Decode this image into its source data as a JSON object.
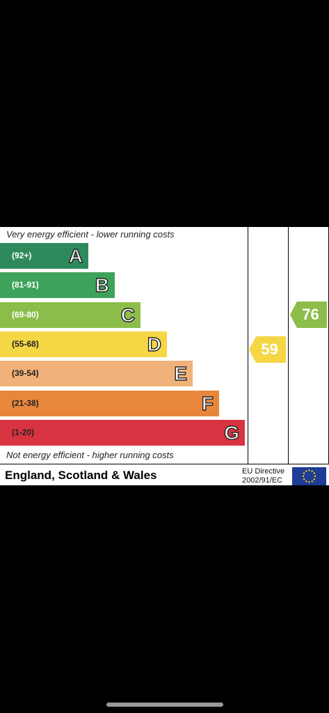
{
  "chart_data": {
    "type": "bar",
    "title": "",
    "top_caption": "Very energy efficient - lower running costs",
    "bottom_caption": "Not energy efficient - higher running costs",
    "bands": [
      {
        "letter": "A",
        "range": "(92+)",
        "color": "#2e8a5c",
        "light": false
      },
      {
        "letter": "B",
        "range": "(81-91)",
        "color": "#3ea35a",
        "light": false
      },
      {
        "letter": "C",
        "range": "(69-80)",
        "color": "#8cbd4a",
        "light": false
      },
      {
        "letter": "D",
        "range": "(55-68)",
        "color": "#f5d645",
        "light": true
      },
      {
        "letter": "E",
        "range": "(39-54)",
        "color": "#f0b27a",
        "light": true
      },
      {
        "letter": "F",
        "range": "(21-38)",
        "color": "#e8873c",
        "light": true
      },
      {
        "letter": "G",
        "range": "(1-20)",
        "color": "#d83341",
        "light": true
      }
    ],
    "current": {
      "value": 59,
      "band": "D",
      "color": "#f5d645"
    },
    "potential": {
      "value": 76,
      "band": "C",
      "color": "#8cbd4a"
    }
  },
  "footer": {
    "region": "England, Scotland & Wales",
    "directive_line1": "EU Directive",
    "directive_line2": "2002/91/EC"
  },
  "icons": {
    "flag": "eu-flag-icon"
  },
  "colors": {
    "background": "#000000",
    "panel": "#ffffff",
    "eu_blue": "#1f3c96",
    "eu_star": "#f5d400"
  }
}
